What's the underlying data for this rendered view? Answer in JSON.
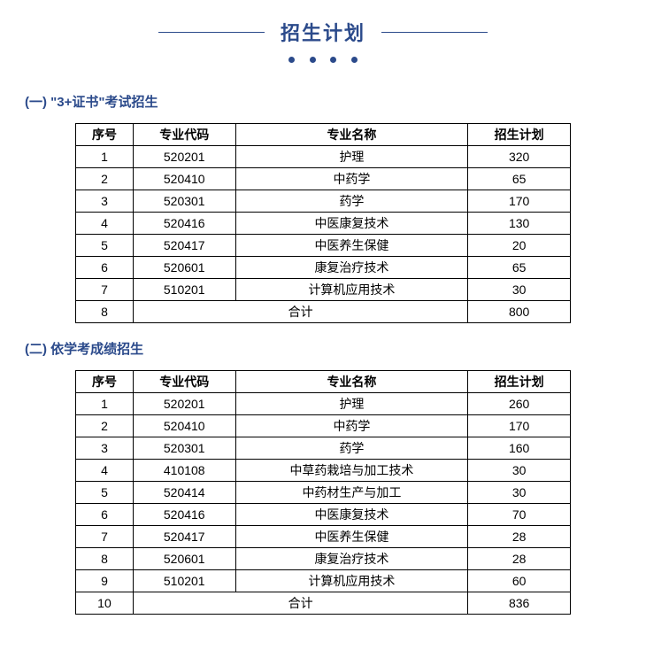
{
  "title": "招生计划",
  "sections": [
    {
      "heading": "(一) \"3+证书\"考试招生",
      "columns": [
        "序号",
        "专业代码",
        "专业名称",
        "招生计划"
      ],
      "rows": [
        {
          "idx": "1",
          "code": "520201",
          "name": "护理",
          "plan": "320"
        },
        {
          "idx": "2",
          "code": "520410",
          "name": "中药学",
          "plan": "65"
        },
        {
          "idx": "3",
          "code": "520301",
          "name": "药学",
          "plan": "170"
        },
        {
          "idx": "4",
          "code": "520416",
          "name": "中医康复技术",
          "plan": "130"
        },
        {
          "idx": "5",
          "code": "520417",
          "name": "中医养生保健",
          "plan": "20"
        },
        {
          "idx": "6",
          "code": "520601",
          "name": "康复治疗技术",
          "plan": "65"
        },
        {
          "idx": "7",
          "code": "510201",
          "name": "计算机应用技术",
          "plan": "30"
        }
      ],
      "total_idx": "8",
      "total_label": "合计",
      "total_plan": "800"
    },
    {
      "heading": "(二) 依学考成绩招生",
      "columns": [
        "序号",
        "专业代码",
        "专业名称",
        "招生计划"
      ],
      "rows": [
        {
          "idx": "1",
          "code": "520201",
          "name": "护理",
          "plan": "260"
        },
        {
          "idx": "2",
          "code": "520410",
          "name": "中药学",
          "plan": "170"
        },
        {
          "idx": "3",
          "code": "520301",
          "name": "药学",
          "plan": "160"
        },
        {
          "idx": "4",
          "code": "410108",
          "name": "中草药栽培与加工技术",
          "plan": "30"
        },
        {
          "idx": "5",
          "code": "520414",
          "name": "中药材生产与加工",
          "plan": "30"
        },
        {
          "idx": "6",
          "code": "520416",
          "name": "中医康复技术",
          "plan": "70"
        },
        {
          "idx": "7",
          "code": "520417",
          "name": "中医养生保健",
          "plan": "28"
        },
        {
          "idx": "8",
          "code": "520601",
          "name": "康复治疗技术",
          "plan": "28"
        },
        {
          "idx": "9",
          "code": "510201",
          "name": "计算机应用技术",
          "plan": "60"
        }
      ],
      "total_idx": "10",
      "total_label": "合计",
      "total_plan": "836"
    }
  ],
  "colors": {
    "accent": "#2b4a8b",
    "text": "#000000",
    "border": "#000000",
    "background": "#ffffff"
  }
}
